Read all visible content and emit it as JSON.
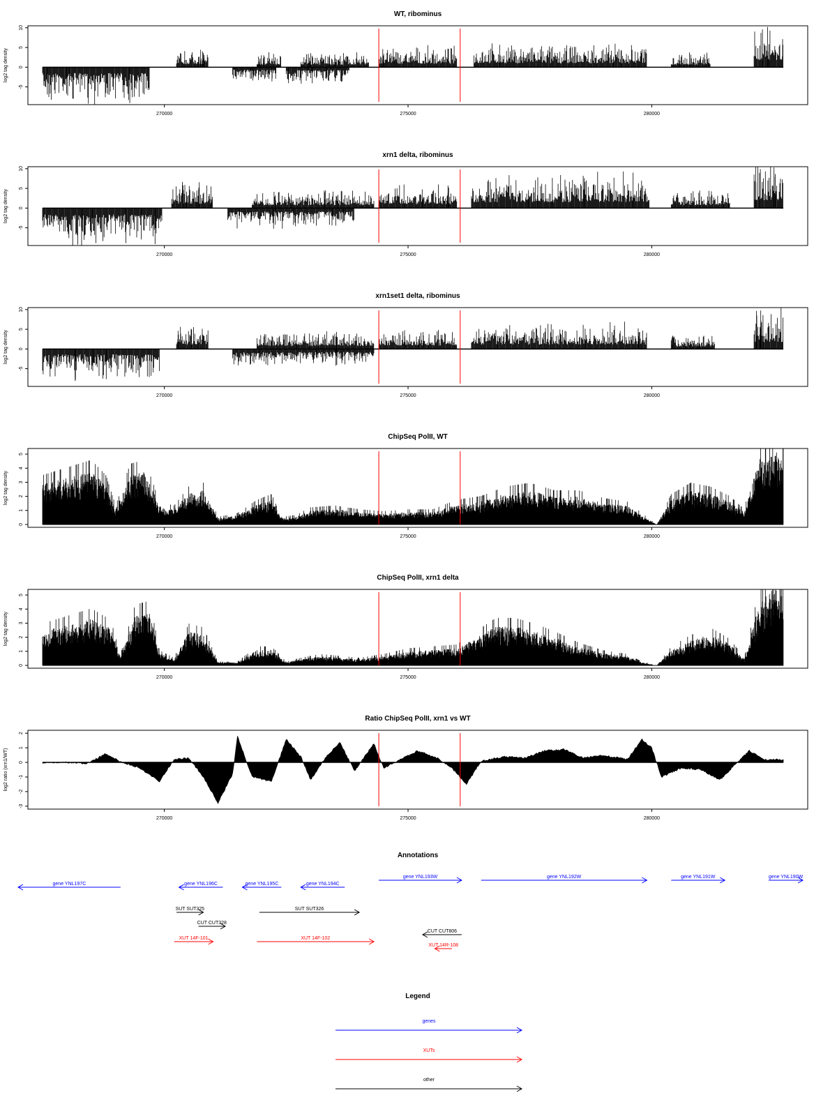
{
  "chart_data": [
    {
      "type": "bar",
      "title": "WT, ribominus",
      "ylabel": "log2 tag density",
      "xlabel": "",
      "xlim": [
        267200,
        283200
      ],
      "ylim": [
        -9.5,
        10.5
      ],
      "yticks": [
        -5,
        0,
        5,
        10
      ],
      "xticks": [
        270000,
        275000,
        280000
      ],
      "grid": false,
      "markers": [
        274400,
        276070
      ],
      "segments": [
        {
          "from": 267500,
          "to": 269700,
          "strand": "minus",
          "level": 6
        },
        {
          "from": 270250,
          "to": 270900,
          "strand": "plus",
          "level": 3
        },
        {
          "from": 271400,
          "to": 272300,
          "strand": "minus",
          "level": 2.5
        },
        {
          "from": 271900,
          "to": 272400,
          "strand": "plus",
          "level": 2.5
        },
        {
          "from": 272500,
          "to": 273800,
          "strand": "minus",
          "level": 3
        },
        {
          "from": 272800,
          "to": 274200,
          "strand": "plus",
          "level": 2.5
        },
        {
          "from": 274400,
          "to": 276000,
          "strand": "plus",
          "level": 3.5
        },
        {
          "from": 276350,
          "to": 279900,
          "strand": "plus",
          "level": 4
        },
        {
          "from": 280400,
          "to": 281200,
          "strand": "plus",
          "level": 2.5
        },
        {
          "from": 282100,
          "to": 282700,
          "strand": "plus",
          "level": 7
        }
      ]
    },
    {
      "type": "bar",
      "title": "xrn1 delta, ribominus",
      "ylabel": "log2 tag density",
      "xlabel": "",
      "xlim": [
        267200,
        283200
      ],
      "ylim": [
        -9.5,
        10.5
      ],
      "yticks": [
        -5,
        0,
        5,
        10
      ],
      "xticks": [
        270000,
        275000,
        280000
      ],
      "grid": false,
      "markers": [
        274400,
        276070
      ],
      "segments": [
        {
          "from": 267500,
          "to": 269950,
          "strand": "minus",
          "level": 6.5
        },
        {
          "from": 270150,
          "to": 271000,
          "strand": "plus",
          "level": 4.5
        },
        {
          "from": 271300,
          "to": 273900,
          "strand": "minus",
          "level": 3.5
        },
        {
          "from": 271800,
          "to": 274300,
          "strand": "plus",
          "level": 3
        },
        {
          "from": 274400,
          "to": 276000,
          "strand": "plus",
          "level": 4
        },
        {
          "from": 276300,
          "to": 279950,
          "strand": "plus",
          "level": 6
        },
        {
          "from": 280400,
          "to": 281600,
          "strand": "plus",
          "level": 3
        },
        {
          "from": 282100,
          "to": 282700,
          "strand": "plus",
          "level": 8
        }
      ]
    },
    {
      "type": "bar",
      "title": "xrn1set1 delta, ribominus",
      "ylabel": "log2 tag density",
      "xlabel": "",
      "xlim": [
        267200,
        283200
      ],
      "ylim": [
        -9.5,
        10.5
      ],
      "yticks": [
        -5,
        0,
        5,
        10
      ],
      "xticks": [
        270000,
        275000,
        280000
      ],
      "grid": false,
      "markers": [
        274400,
        276070
      ],
      "segments": [
        {
          "from": 267500,
          "to": 269900,
          "strand": "minus",
          "level": 5.5
        },
        {
          "from": 270250,
          "to": 270900,
          "strand": "plus",
          "level": 4
        },
        {
          "from": 271400,
          "to": 274300,
          "strand": "minus",
          "level": 3
        },
        {
          "from": 271900,
          "to": 274300,
          "strand": "plus",
          "level": 3
        },
        {
          "from": 274400,
          "to": 276000,
          "strand": "plus",
          "level": 3.5
        },
        {
          "from": 276300,
          "to": 279900,
          "strand": "plus",
          "level": 4.5
        },
        {
          "from": 280400,
          "to": 281300,
          "strand": "plus",
          "level": 2.5
        },
        {
          "from": 282100,
          "to": 282700,
          "strand": "plus",
          "level": 7
        }
      ]
    },
    {
      "type": "bar",
      "title": "ChipSeq PolII, WT",
      "ylabel": "log2 tag density",
      "xlabel": "",
      "xlim": [
        267200,
        283200
      ],
      "ylim": [
        -0.2,
        5.4
      ],
      "yticks": [
        0,
        1,
        2,
        3,
        4,
        5
      ],
      "xticks": [
        270000,
        275000,
        280000
      ],
      "grid": false,
      "markers": [
        274400,
        276070
      ],
      "profile": [
        [
          267500,
          2.6
        ],
        [
          268000,
          3.0
        ],
        [
          268500,
          3.4
        ],
        [
          268800,
          2.6
        ],
        [
          269000,
          1.0
        ],
        [
          269300,
          3.2
        ],
        [
          269600,
          3.4
        ],
        [
          269900,
          1.2
        ],
        [
          270200,
          1.0
        ],
        [
          270500,
          2.0
        ],
        [
          270800,
          2.2
        ],
        [
          271100,
          0.4
        ],
        [
          271500,
          0.6
        ],
        [
          271900,
          1.3
        ],
        [
          272200,
          1.6
        ],
        [
          272400,
          0.4
        ],
        [
          272700,
          0.5
        ],
        [
          273000,
          0.9
        ],
        [
          273500,
          1.0
        ],
        [
          274000,
          0.8
        ],
        [
          274500,
          0.7
        ],
        [
          275000,
          0.8
        ],
        [
          275500,
          0.8
        ],
        [
          276000,
          1.3
        ],
        [
          276500,
          1.5
        ],
        [
          277000,
          2.0
        ],
        [
          277500,
          2.2
        ],
        [
          278000,
          1.8
        ],
        [
          278500,
          1.8
        ],
        [
          279000,
          1.4
        ],
        [
          279500,
          1.2
        ],
        [
          279800,
          0.6
        ],
        [
          280100,
          0.0
        ],
        [
          280400,
          1.6
        ],
        [
          280800,
          2.2
        ],
        [
          281200,
          2.0
        ],
        [
          281600,
          1.5
        ],
        [
          281900,
          0.8
        ],
        [
          282200,
          4.2
        ],
        [
          282500,
          4.8
        ],
        [
          282700,
          4.8
        ]
      ]
    },
    {
      "type": "bar",
      "title": "ChipSeq PolII, xrn1 delta",
      "ylabel": "log2 tag density",
      "xlabel": "",
      "xlim": [
        267200,
        283200
      ],
      "ylim": [
        -0.2,
        5.4
      ],
      "yticks": [
        0,
        1,
        2,
        3,
        4,
        5
      ],
      "xticks": [
        270000,
        275000,
        280000
      ],
      "grid": false,
      "markers": [
        274400,
        276070
      ],
      "profile": [
        [
          267500,
          2.2
        ],
        [
          268000,
          2.6
        ],
        [
          268500,
          3.0
        ],
        [
          268900,
          2.4
        ],
        [
          269100,
          0.6
        ],
        [
          269400,
          3.2
        ],
        [
          269700,
          3.4
        ],
        [
          269900,
          0.8
        ],
        [
          270200,
          0.4
        ],
        [
          270500,
          2.2
        ],
        [
          270800,
          2.0
        ],
        [
          271100,
          0.2
        ],
        [
          271500,
          0.2
        ],
        [
          271900,
          1.0
        ],
        [
          272200,
          1.0
        ],
        [
          272500,
          0.2
        ],
        [
          272800,
          0.4
        ],
        [
          273200,
          0.6
        ],
        [
          273600,
          0.5
        ],
        [
          274000,
          0.4
        ],
        [
          274500,
          0.6
        ],
        [
          275000,
          0.9
        ],
        [
          275500,
          1.0
        ],
        [
          276000,
          1.1
        ],
        [
          276400,
          1.8
        ],
        [
          276800,
          2.5
        ],
        [
          277200,
          2.5
        ],
        [
          277600,
          2.2
        ],
        [
          278000,
          1.8
        ],
        [
          278500,
          1.2
        ],
        [
          279000,
          0.8
        ],
        [
          279500,
          0.6
        ],
        [
          279800,
          0.2
        ],
        [
          280100,
          0.0
        ],
        [
          280400,
          1.0
        ],
        [
          280800,
          1.6
        ],
        [
          281200,
          2.0
        ],
        [
          281600,
          1.4
        ],
        [
          281900,
          0.4
        ],
        [
          282200,
          4.0
        ],
        [
          282500,
          5.0
        ],
        [
          282700,
          5.0
        ]
      ]
    },
    {
      "type": "area",
      "title": "Ratio ChipSeq PolII, xrn1 vs WT",
      "ylabel": "log2 ratio (xrn1/WT)",
      "xlabel": "",
      "xlim": [
        267200,
        283200
      ],
      "ylim": [
        -3.2,
        2.2
      ],
      "yticks": [
        -3,
        -2,
        -1,
        0,
        1,
        2
      ],
      "xticks": [
        270000,
        275000,
        280000
      ],
      "grid": false,
      "markers": [
        274400,
        276070
      ],
      "profile": [
        [
          267500,
          -0.05
        ],
        [
          268000,
          0.0
        ],
        [
          268400,
          -0.1
        ],
        [
          268800,
          0.6
        ],
        [
          269100,
          0.05
        ],
        [
          269500,
          -0.4
        ],
        [
          269900,
          -1.3
        ],
        [
          270200,
          0.2
        ],
        [
          270500,
          0.3
        ],
        [
          270800,
          -1.0
        ],
        [
          271100,
          -2.8
        ],
        [
          271400,
          -0.8
        ],
        [
          271500,
          1.8
        ],
        [
          271800,
          -1.0
        ],
        [
          272200,
          -1.3
        ],
        [
          272500,
          1.6
        ],
        [
          272800,
          0.4
        ],
        [
          273000,
          -1.2
        ],
        [
          273300,
          0.3
        ],
        [
          273600,
          1.4
        ],
        [
          273900,
          -0.6
        ],
        [
          274300,
          1.3
        ],
        [
          274500,
          -0.4
        ],
        [
          274900,
          0.3
        ],
        [
          275200,
          0.8
        ],
        [
          275600,
          0.3
        ],
        [
          275900,
          -0.4
        ],
        [
          276200,
          -1.5
        ],
        [
          276500,
          0.1
        ],
        [
          277000,
          0.4
        ],
        [
          277400,
          0.3
        ],
        [
          277800,
          0.8
        ],
        [
          278200,
          0.9
        ],
        [
          278600,
          0.3
        ],
        [
          279000,
          0.5
        ],
        [
          279500,
          0.2
        ],
        [
          279800,
          1.6
        ],
        [
          280000,
          1.0
        ],
        [
          280200,
          -1.0
        ],
        [
          280600,
          -0.4
        ],
        [
          281000,
          -0.5
        ],
        [
          281400,
          -1.2
        ],
        [
          281700,
          -0.2
        ],
        [
          282000,
          0.8
        ],
        [
          282300,
          0.2
        ],
        [
          282700,
          0.2
        ]
      ]
    }
  ],
  "annotations": {
    "title": "Annotations",
    "features": [
      {
        "label": "gene YNL197C",
        "from": 267000,
        "to": 269100,
        "dir": "left",
        "row": 0,
        "kind": "gene"
      },
      {
        "label": "gene YNL196C",
        "from": 270300,
        "to": 271200,
        "dir": "left",
        "row": 0,
        "kind": "gene"
      },
      {
        "label": "gene YNL195C",
        "from": 271600,
        "to": 272400,
        "dir": "left",
        "row": 0,
        "kind": "gene"
      },
      {
        "label": "gene YNL194C",
        "from": 272800,
        "to": 273700,
        "dir": "left",
        "row": 0,
        "kind": "gene"
      },
      {
        "label": "gene YNL193W",
        "from": 274400,
        "to": 276100,
        "dir": "right",
        "row": -1,
        "kind": "gene"
      },
      {
        "label": "gene YNL192W",
        "from": 276500,
        "to": 279900,
        "dir": "right",
        "row": -1,
        "kind": "gene"
      },
      {
        "label": "gene YNL191W",
        "from": 280400,
        "to": 281500,
        "dir": "right",
        "row": -1,
        "kind": "gene"
      },
      {
        "label": "gene YNL190W",
        "from": 282400,
        "to": 283100,
        "dir": "right",
        "row": -1,
        "kind": "gene"
      },
      {
        "label": "SUT SUT325",
        "from": 270250,
        "to": 270800,
        "dir": "right",
        "row": 1,
        "kind": "other"
      },
      {
        "label": "SUT SUT326",
        "from": 271950,
        "to": 274000,
        "dir": "right",
        "row": 1,
        "kind": "other"
      },
      {
        "label": "CUT CUT328",
        "from": 270700,
        "to": 271250,
        "dir": "right",
        "row": 2,
        "kind": "other"
      },
      {
        "label": "CUT CUT806",
        "from": 275300,
        "to": 276100,
        "dir": "left",
        "row": 3,
        "kind": "other"
      },
      {
        "label": "XUT 14F-101",
        "from": 270200,
        "to": 271000,
        "dir": "right",
        "row": 4,
        "kind": "xut"
      },
      {
        "label": "XUT 14F-102",
        "from": 271900,
        "to": 274300,
        "dir": "right",
        "row": 4,
        "kind": "xut"
      },
      {
        "label": "XUT 14R-108",
        "from": 275550,
        "to": 275900,
        "dir": "left",
        "row": 5,
        "kind": "xut"
      }
    ]
  },
  "legend": {
    "title": "Legend",
    "items": [
      {
        "label": "genes",
        "kind": "gene"
      },
      {
        "label": "XUTs",
        "kind": "xut"
      },
      {
        "label": "other",
        "kind": "other"
      }
    ]
  },
  "colors": {
    "gene": "#0000ff",
    "xut": "#ff0000",
    "other": "#000000",
    "marker": "#ff0000",
    "bars": "#000000"
  }
}
